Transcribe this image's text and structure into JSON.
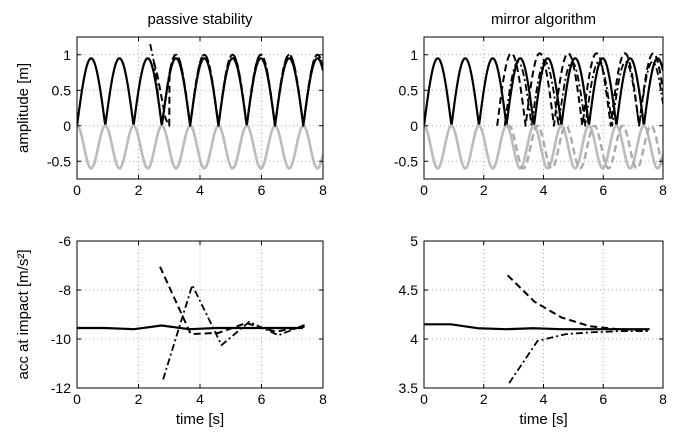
{
  "chart_data": [
    {
      "type": "line",
      "title": "passive stability",
      "xlabel": "",
      "ylabel": "amplitude [m]",
      "xlim": [
        0,
        8
      ],
      "ylim": [
        -0.75,
        1.25
      ],
      "xticks": [
        "0",
        "2",
        "4",
        "6",
        "8"
      ],
      "yticks": [
        "-0.5",
        "0",
        "0.5",
        "1"
      ],
      "yticks_v": [
        -0.5,
        0,
        0.5,
        1
      ],
      "grid": true,
      "series": [
        {
          "style": "solid-black",
          "kind": "bounce",
          "amp": 0.95,
          "period": 0.92,
          "t0": 0.0,
          "t1": 8.0
        },
        {
          "style": "solid-gray",
          "kind": "sinus",
          "amp": 0.3,
          "offset": -0.3,
          "period": 0.92,
          "t0": 0.0,
          "t1": 8.0
        },
        {
          "style": "dashed",
          "x": [
            2.5,
            2.62,
            2.75,
            2.88,
            3.0
          ],
          "y": [
            0.9,
            0.7,
            0.4,
            0.1,
            0.0
          ],
          "then_bounce": true
        },
        {
          "style": "dashdot",
          "x": [
            2.38,
            2.5,
            2.62,
            2.75
          ],
          "y": [
            1.15,
            0.9,
            0.5,
            0.0
          ],
          "then_bounce": true
        }
      ]
    },
    {
      "type": "line",
      "title": "mirror algorithm",
      "xlabel": "",
      "ylabel": "",
      "xlim": [
        0,
        8
      ],
      "ylim": [
        -0.75,
        1.25
      ],
      "xticks": [
        "0",
        "2",
        "4",
        "6",
        "8"
      ],
      "yticks": [
        "-0.5",
        "0",
        "0.5",
        "1"
      ],
      "yticks_v": [
        -0.5,
        0,
        0.5,
        1
      ],
      "grid": true,
      "series": [
        {
          "style": "solid-black",
          "kind": "bounce",
          "amp": 0.95,
          "period": 0.92,
          "t0": 0.0,
          "t1": 8.0
        },
        {
          "style": "solid-gray",
          "kind": "sinus",
          "amp": 0.3,
          "offset": -0.3,
          "period": 0.92,
          "t0": 0.0,
          "t1": 8.0
        },
        {
          "style": "dashed",
          "kind": "bounce",
          "amp": 1.02,
          "period": 0.95,
          "t0": 2.45,
          "t1": 8.0
        },
        {
          "style": "dashdot",
          "kind": "bounce",
          "amp": 0.9,
          "period": 0.9,
          "t0": 2.7,
          "t1": 8.0
        },
        {
          "style": "dashed-gray",
          "kind": "sinus",
          "amp": 0.3,
          "offset": -0.3,
          "period": 0.95,
          "t0": 2.8,
          "t1": 8.0
        }
      ]
    },
    {
      "type": "line",
      "title": "",
      "xlabel": "time [s]",
      "ylabel": "acc at impact [m/s²]",
      "xlim": [
        0,
        8
      ],
      "ylim": [
        -12,
        -6
      ],
      "xticks": [
        "0",
        "2",
        "4",
        "6",
        "8"
      ],
      "yticks": [
        "-12",
        "-10",
        "-8",
        "-6"
      ],
      "yticks_v": [
        -12,
        -10,
        -8,
        -6
      ],
      "grid": true,
      "series": [
        {
          "style": "solid-black",
          "x": [
            0.0,
            0.9,
            1.85,
            2.75,
            3.65,
            4.55,
            5.45,
            6.4,
            7.35
          ],
          "y": [
            -9.55,
            -9.55,
            -9.6,
            -9.45,
            -9.6,
            -9.55,
            -9.55,
            -9.55,
            -9.55
          ]
        },
        {
          "style": "dashed",
          "x": [
            2.7,
            3.7,
            4.6,
            5.5,
            6.45,
            7.4
          ],
          "y": [
            -7.05,
            -9.8,
            -9.75,
            -9.35,
            -9.7,
            -9.5
          ]
        },
        {
          "style": "dashdot",
          "x": [
            2.8,
            3.75,
            4.7,
            5.6,
            6.55,
            7.45
          ],
          "y": [
            -11.65,
            -7.8,
            -10.25,
            -9.3,
            -9.85,
            -9.4
          ]
        }
      ]
    },
    {
      "type": "line",
      "title": "",
      "xlabel": "time [s]",
      "ylabel": "",
      "xlim": [
        0,
        8
      ],
      "ylim": [
        3.5,
        5
      ],
      "xticks": [
        "0",
        "2",
        "4",
        "6",
        "8"
      ],
      "yticks": [
        "3.5",
        "4",
        "4.5",
        "5"
      ],
      "yticks_v": [
        3.5,
        4,
        4.5,
        5
      ],
      "grid": true,
      "series": [
        {
          "style": "solid-black",
          "x": [
            0.0,
            0.9,
            1.8,
            2.75,
            3.65,
            4.6,
            5.5,
            6.45,
            7.55
          ],
          "y": [
            4.15,
            4.15,
            4.11,
            4.1,
            4.11,
            4.1,
            4.1,
            4.1,
            4.1
          ]
        },
        {
          "style": "dashed",
          "x": [
            2.8,
            3.7,
            4.6,
            5.55,
            6.5,
            7.45
          ],
          "y": [
            4.65,
            4.38,
            4.22,
            4.13,
            4.1,
            4.09
          ]
        },
        {
          "style": "dashdot",
          "x": [
            2.85,
            3.8,
            4.75,
            5.7,
            6.6,
            7.5
          ],
          "y": [
            3.55,
            3.98,
            4.05,
            4.07,
            4.08,
            4.08
          ]
        }
      ]
    }
  ]
}
